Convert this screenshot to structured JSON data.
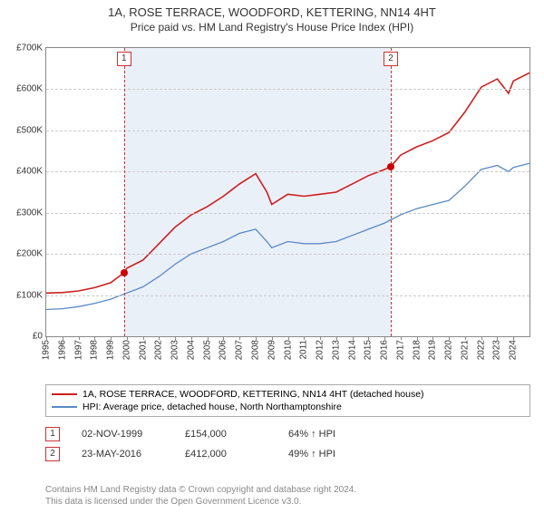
{
  "title": "1A, ROSE TERRACE, WOODFORD, KETTERING, NN14 4HT",
  "subtitle": "Price paid vs. HM Land Registry's House Price Index (HPI)",
  "chart": {
    "type": "line",
    "xlim": [
      1995,
      2025
    ],
    "ylim": [
      0,
      700000
    ],
    "ytick_step": 100000,
    "yticks": [
      "£0",
      "£100K",
      "£200K",
      "£300K",
      "£400K",
      "£500K",
      "£600K",
      "£700K"
    ],
    "xticks": [
      1995,
      1996,
      1997,
      1998,
      1999,
      2000,
      2001,
      2002,
      2003,
      2004,
      2005,
      2006,
      2007,
      2008,
      2009,
      2010,
      2011,
      2012,
      2013,
      2014,
      2015,
      2016,
      2017,
      2018,
      2019,
      2020,
      2021,
      2022,
      2023,
      2024
    ],
    "shaded_region": {
      "start": 1999.83,
      "end": 2016.39,
      "fill": "#eaf0f8"
    },
    "markers": [
      {
        "label": "1",
        "x": 1999.83
      },
      {
        "label": "2",
        "x": 2016.39
      }
    ],
    "sale_points": [
      {
        "x": 1999.83,
        "y": 154000
      },
      {
        "x": 2016.39,
        "y": 412000
      }
    ],
    "series": [
      {
        "name": "property",
        "color": "#cc1f1f",
        "stroke_width": 1.6,
        "points": [
          [
            1995,
            105000
          ],
          [
            1996,
            106000
          ],
          [
            1997,
            110000
          ],
          [
            1998,
            118000
          ],
          [
            1999,
            130000
          ],
          [
            1999.83,
            154000
          ],
          [
            2000,
            165000
          ],
          [
            2001,
            185000
          ],
          [
            2002,
            225000
          ],
          [
            2003,
            265000
          ],
          [
            2004,
            295000
          ],
          [
            2005,
            315000
          ],
          [
            2006,
            340000
          ],
          [
            2007,
            370000
          ],
          [
            2008,
            395000
          ],
          [
            2008.7,
            350000
          ],
          [
            2009,
            320000
          ],
          [
            2010,
            345000
          ],
          [
            2011,
            340000
          ],
          [
            2012,
            345000
          ],
          [
            2013,
            350000
          ],
          [
            2014,
            370000
          ],
          [
            2015,
            390000
          ],
          [
            2016,
            405000
          ],
          [
            2016.39,
            412000
          ],
          [
            2017,
            440000
          ],
          [
            2018,
            460000
          ],
          [
            2019,
            475000
          ],
          [
            2020,
            495000
          ],
          [
            2021,
            545000
          ],
          [
            2022,
            605000
          ],
          [
            2023,
            625000
          ],
          [
            2023.7,
            590000
          ],
          [
            2024,
            620000
          ],
          [
            2025,
            640000
          ]
        ]
      },
      {
        "name": "hpi",
        "color": "#5b89c4",
        "stroke_width": 1.3,
        "points": [
          [
            1995,
            65000
          ],
          [
            1996,
            67000
          ],
          [
            1997,
            72000
          ],
          [
            1998,
            80000
          ],
          [
            1999,
            90000
          ],
          [
            2000,
            105000
          ],
          [
            2001,
            120000
          ],
          [
            2002,
            145000
          ],
          [
            2003,
            175000
          ],
          [
            2004,
            200000
          ],
          [
            2005,
            215000
          ],
          [
            2006,
            230000
          ],
          [
            2007,
            250000
          ],
          [
            2008,
            260000
          ],
          [
            2008.7,
            230000
          ],
          [
            2009,
            215000
          ],
          [
            2010,
            230000
          ],
          [
            2011,
            225000
          ],
          [
            2012,
            225000
          ],
          [
            2013,
            230000
          ],
          [
            2014,
            245000
          ],
          [
            2015,
            260000
          ],
          [
            2016,
            275000
          ],
          [
            2017,
            295000
          ],
          [
            2018,
            310000
          ],
          [
            2019,
            320000
          ],
          [
            2020,
            330000
          ],
          [
            2021,
            365000
          ],
          [
            2022,
            405000
          ],
          [
            2023,
            415000
          ],
          [
            2023.7,
            400000
          ],
          [
            2024,
            410000
          ],
          [
            2025,
            420000
          ]
        ]
      }
    ],
    "background_color": "#ffffff",
    "grid_color": "#cccccc",
    "axis_color": "#888888"
  },
  "legend": {
    "items": [
      {
        "color": "#cc1f1f",
        "label": "1A, ROSE TERRACE, WOODFORD, KETTERING, NN14 4HT (detached house)"
      },
      {
        "color": "#5b89c4",
        "label": "HPI: Average price, detached house, North Northamptonshire"
      }
    ]
  },
  "sales": [
    {
      "marker": "1",
      "date": "02-NOV-1999",
      "price": "£154,000",
      "delta": "64% ↑ HPI"
    },
    {
      "marker": "2",
      "date": "23-MAY-2016",
      "price": "£412,000",
      "delta": "49% ↑ HPI"
    }
  ],
  "footer": {
    "line1": "Contains HM Land Registry data © Crown copyright and database right 2024.",
    "line2": "This data is licensed under the Open Government Licence v3.0."
  }
}
